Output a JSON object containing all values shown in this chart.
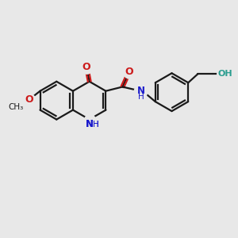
{
  "bg_color": "#e8e8e8",
  "bond_color": "#1a1a1a",
  "n_color": "#1a1acc",
  "o_color": "#cc1a1a",
  "teal_color": "#2a9d8f",
  "lw": 1.6,
  "figsize": [
    3.0,
    3.0
  ],
  "dpi": 100,
  "xlim": [
    0,
    10
  ],
  "ylim": [
    0,
    10
  ]
}
